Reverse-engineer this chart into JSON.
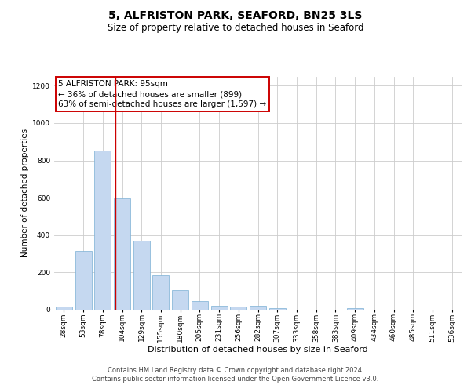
{
  "title": "5, ALFRISTON PARK, SEAFORD, BN25 3LS",
  "subtitle": "Size of property relative to detached houses in Seaford",
  "xlabel": "Distribution of detached houses by size in Seaford",
  "ylabel": "Number of detached properties",
  "bar_color": "#c5d8f0",
  "bar_edge_color": "#7bafd4",
  "categories": [
    "28sqm",
    "53sqm",
    "78sqm",
    "104sqm",
    "129sqm",
    "155sqm",
    "180sqm",
    "205sqm",
    "231sqm",
    "256sqm",
    "282sqm",
    "307sqm",
    "333sqm",
    "358sqm",
    "383sqm",
    "409sqm",
    "434sqm",
    "460sqm",
    "485sqm",
    "511sqm",
    "536sqm"
  ],
  "values": [
    15,
    315,
    855,
    598,
    370,
    185,
    105,
    47,
    22,
    18,
    20,
    10,
    0,
    0,
    0,
    10,
    0,
    0,
    0,
    0,
    0
  ],
  "annotation_line1": "5 ALFRISTON PARK: 95sqm",
  "annotation_line2": "← 36% of detached houses are smaller (899)",
  "annotation_line3": "63% of semi-detached houses are larger (1,597) →",
  "annotation_box_color": "#ffffff",
  "annotation_box_edge_color": "#cc0000",
  "vline_color": "#cc0000",
  "vline_pos": 2.67,
  "grid_color": "#cccccc",
  "background_color": "#ffffff",
  "footer_line1": "Contains HM Land Registry data © Crown copyright and database right 2024.",
  "footer_line2": "Contains public sector information licensed under the Open Government Licence v3.0.",
  "ylim": [
    0,
    1250
  ],
  "yticks": [
    0,
    200,
    400,
    600,
    800,
    1000,
    1200
  ],
  "title_fontsize": 10,
  "subtitle_fontsize": 8.5,
  "xlabel_fontsize": 8,
  "ylabel_fontsize": 7.5,
  "tick_fontsize": 6.5,
  "annotation_fontsize": 7.5,
  "footer_fontsize": 6
}
